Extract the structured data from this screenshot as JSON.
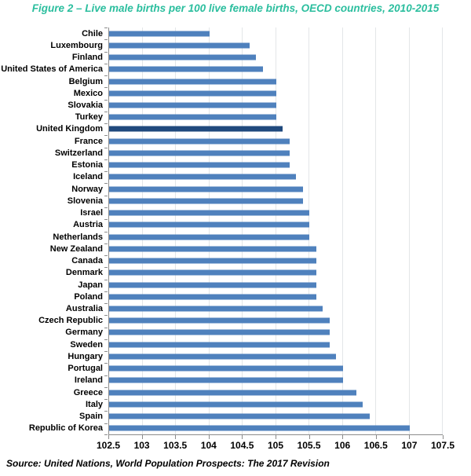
{
  "title": "Figure 2 – Live male births per 100 live female births, OECD countries, 2010-2015",
  "source": "Source: United Nations, World Population Prospects: The 2017 Revision",
  "chart_data": {
    "type": "bar",
    "orientation": "horizontal",
    "title": "Figure 2 – Live male births per 100 live female births, OECD countries, 2010-2015",
    "xlabel": "",
    "ylabel": "",
    "xlim": [
      102.5,
      107.5
    ],
    "x_ticks": [
      102.5,
      103,
      103.5,
      104,
      104.5,
      105,
      105.5,
      106,
      106.5,
      107,
      107.5
    ],
    "x_tick_labels": [
      "102.5",
      "103",
      "103.5",
      "104",
      "104.5",
      "105",
      "105.5",
      "106",
      "106.5",
      "107",
      "107.5"
    ],
    "grid": true,
    "legend": "none",
    "categories": [
      "Chile",
      "Luxembourg",
      "Finland",
      "United States of America",
      "Belgium",
      "Mexico",
      "Slovakia",
      "Turkey",
      "United Kingdom",
      "France",
      "Switzerland",
      "Estonia",
      "Iceland",
      "Norway",
      "Slovenia",
      "Israel",
      "Austria",
      "Netherlands",
      "New Zealand",
      "Canada",
      "Denmark",
      "Japan",
      "Poland",
      "Australia",
      "Czech Republic",
      "Germany",
      "Sweden",
      "Hungary",
      "Portugal",
      "Ireland",
      "Greece",
      "Italy",
      "Spain",
      "Republic of Korea"
    ],
    "values": [
      104.0,
      104.6,
      104.7,
      104.8,
      105.0,
      105.0,
      105.0,
      105.0,
      105.1,
      105.2,
      105.2,
      105.2,
      105.3,
      105.4,
      105.4,
      105.5,
      105.5,
      105.5,
      105.6,
      105.6,
      105.6,
      105.6,
      105.6,
      105.7,
      105.8,
      105.8,
      105.8,
      105.9,
      106.0,
      106.0,
      106.2,
      106.3,
      106.4,
      107.0
    ],
    "highlight_category": "United Kingdom",
    "bar_color": "#4F81BD",
    "highlight_color": "#1F497D",
    "gridline_color": "#E3E6E8",
    "axis_color": "#8C8C8C",
    "title_color": "#2BBE9E",
    "text_color": "#000000"
  }
}
